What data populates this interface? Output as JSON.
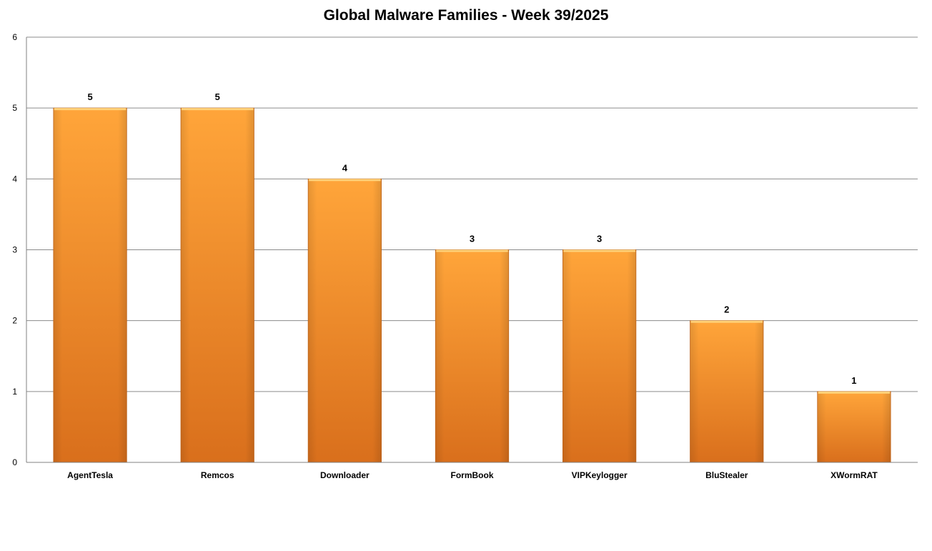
{
  "chart_data": {
    "type": "bar",
    "title": "Global Malware Families - Week 39/2025",
    "xlabel": "",
    "ylabel": "",
    "categories": [
      "AgentTesla",
      "Remcos",
      "Downloader",
      "FormBook",
      "VIPKeylogger",
      "BluStealer",
      "XWormRAT"
    ],
    "values": [
      5,
      5,
      4,
      3,
      3,
      2,
      1
    ],
    "ylim": [
      0,
      6
    ],
    "yticks": [
      "0",
      "1",
      "2",
      "3",
      "4",
      "5",
      "6"
    ],
    "grid": true,
    "data_labels": true,
    "legend": "none",
    "colors": {
      "bar_top": "#FFA53A",
      "bar_bottom": "#D96F1C",
      "bar_edge": "#C8681C",
      "bar_highlight": "#FFD27A",
      "gridline": "#8C8C8C",
      "axis": "#808080"
    }
  }
}
